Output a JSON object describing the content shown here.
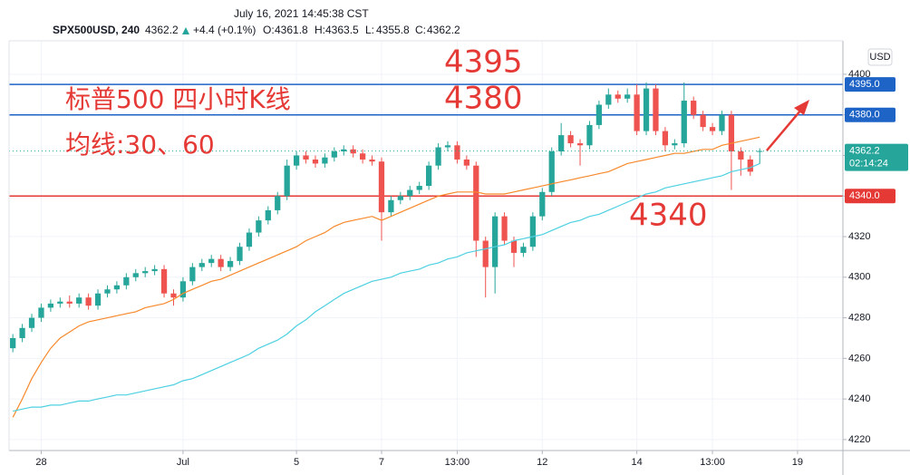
{
  "chart_data": {
    "type": "candlestick",
    "title": "July 16, 2021 14:45:38 CST",
    "symbol": "SPX500USD, 240",
    "change": "+4.4 (+0.1%)",
    "ohlc_labels": [
      "O:",
      "H:",
      "L:",
      "C:"
    ],
    "currency": "USD",
    "countdown": "02:14:24",
    "up_color": "#26a69a",
    "down_color": "#ef5350",
    "open": [
      4265,
      4270,
      4275,
      4280,
      4285,
      4287,
      4288,
      4287,
      4290,
      4286,
      4292,
      4294,
      4296,
      4300,
      4302,
      4303,
      4304,
      4292,
      4290,
      4298,
      4305,
      4307,
      4309,
      4305,
      4308,
      4315,
      4322,
      4328,
      4333,
      4340,
      4355,
      4360,
      4358,
      4356,
      4359,
      4362,
      4363,
      4361,
      4358,
      4357,
      4332,
      4338,
      4340,
      4343,
      4345,
      4355,
      4364,
      4365,
      4358,
      4355,
      4318,
      4305,
      4330,
      4318,
      4312,
      4315,
      4330,
      4342,
      4362,
      4370,
      4366,
      4365,
      4375,
      4385,
      4390,
      4388,
      4390,
      4372,
      4393,
      4372,
      4365,
      4366,
      4387,
      4380,
      4374,
      4372,
      4380,
      4362,
      4358,
      4361.8
    ],
    "high": [
      4272,
      4277,
      4282,
      4287,
      4289,
      4290,
      4291,
      4292,
      4292,
      4294,
      4296,
      4298,
      4302,
      4304,
      4305,
      4306,
      4306,
      4294,
      4300,
      4307,
      4309,
      4311,
      4311,
      4310,
      4317,
      4324,
      4330,
      4335,
      4342,
      4358,
      4362,
      4362,
      4360,
      4361,
      4364,
      4365,
      4365,
      4363,
      4360,
      4359,
      4340,
      4342,
      4345,
      4347,
      4357,
      4366,
      4367,
      4367,
      4360,
      4357,
      4320,
      4332,
      4332,
      4320,
      4317,
      4332,
      4344,
      4364,
      4376,
      4372,
      4368,
      4377,
      4387,
      4393,
      4392,
      4393,
      4395,
      4396,
      4395,
      4374,
      4368,
      4396,
      4389,
      4382,
      4376,
      4382,
      4382,
      4364,
      4360,
      4363.5
    ],
    "low": [
      4263,
      4268,
      4273,
      4278,
      4283,
      4285,
      4285,
      4285,
      4284,
      4284,
      4290,
      4292,
      4294,
      4298,
      4300,
      4301,
      4290,
      4286,
      4288,
      4296,
      4303,
      4305,
      4303,
      4303,
      4306,
      4313,
      4320,
      4326,
      4331,
      4338,
      4353,
      4356,
      4354,
      4354,
      4357,
      4360,
      4359,
      4356,
      4355,
      4318,
      4330,
      4336,
      4338,
      4341,
      4343,
      4353,
      4362,
      4356,
      4353,
      4310,
      4290,
      4292,
      4316,
      4305,
      4310,
      4313,
      4328,
      4340,
      4360,
      4364,
      4355,
      4363,
      4373,
      4383,
      4386,
      4386,
      4370,
      4370,
      4370,
      4362,
      4363,
      4364,
      4378,
      4372,
      4370,
      4370,
      4343,
      4350,
      4350,
      4355.8
    ],
    "close": [
      4270,
      4275,
      4280,
      4285,
      4287,
      4288,
      4287,
      4290,
      4286,
      4292,
      4294,
      4296,
      4300,
      4302,
      4303,
      4304,
      4292,
      4290,
      4298,
      4305,
      4307,
      4309,
      4305,
      4308,
      4315,
      4322,
      4328,
      4333,
      4340,
      4355,
      4360,
      4358,
      4356,
      4359,
      4362,
      4363,
      4361,
      4358,
      4357,
      4332,
      4338,
      4340,
      4343,
      4345,
      4355,
      4364,
      4365,
      4358,
      4355,
      4318,
      4305,
      4330,
      4318,
      4312,
      4315,
      4330,
      4342,
      4362,
      4370,
      4366,
      4365,
      4375,
      4385,
      4390,
      4388,
      4390,
      4372,
      4393,
      4372,
      4365,
      4366,
      4387,
      4380,
      4374,
      4372,
      4380,
      4362,
      4358,
      4352,
      4362.2
    ],
    "ma_lines": [
      {
        "color": "#f7892b",
        "values": [
          4231,
          4240,
          4250,
          4258,
          4265,
          4270,
          4273,
          4276,
          4278,
          4279,
          4280,
          4281,
          4282,
          4283,
          4285,
          4286,
          4287,
          4289,
          4292,
          4294,
          4296,
          4298,
          4299,
          4301,
          4303,
          4305,
          4307,
          4309,
          4311,
          4313,
          4315,
          4318,
          4320,
          4322,
          4325,
          4327,
          4328,
          4329,
          4330,
          4328,
          4330,
          4332,
          4334,
          4336,
          4338,
          4340,
          4341,
          4342,
          4342,
          4342,
          4341,
          4341,
          4341,
          4342,
          4343,
          4344,
          4345,
          4346,
          4347,
          4348,
          4349,
          4350,
          4351,
          4352,
          4354,
          4356,
          4357,
          4358,
          4359,
          4360,
          4361,
          4361,
          4362,
          4363,
          4363,
          4365,
          4366,
          4367,
          4368,
          4369
        ]
      },
      {
        "color": "#4dd0e1",
        "values": [
          4234,
          4235,
          4236,
          4236,
          4237,
          4237,
          4238,
          4239,
          4239,
          4240,
          4241,
          4242,
          4242,
          4243,
          4244,
          4245,
          4246,
          4247,
          4249,
          4250,
          4252,
          4254,
          4256,
          4258,
          4260,
          4262,
          4265,
          4267,
          4269,
          4272,
          4276,
          4279,
          4283,
          4286,
          4289,
          4292,
          4294,
          4296,
          4298,
          4299,
          4300,
          4302,
          4303,
          4304,
          4306,
          4307,
          4309,
          4310,
          4312,
          4313,
          4314,
          4315,
          4316,
          4318,
          4319,
          4320,
          4321,
          4323,
          4325,
          4327,
          4328,
          4330,
          4331,
          4333,
          4335,
          4337,
          4339,
          4341,
          4342,
          4344,
          4345,
          4346,
          4347,
          4348,
          4349,
          4350,
          4352,
          4353,
          4354,
          4356
        ]
      }
    ],
    "xlim": [
      -0.4,
      87.8
    ],
    "xticks": [
      {
        "value": 3,
        "label": "28"
      },
      {
        "value": 18,
        "label": "Jul"
      },
      {
        "value": 30,
        "label": "5"
      },
      {
        "value": 39,
        "label": "7"
      },
      {
        "value": 47,
        "label": "13:00"
      },
      {
        "value": 56,
        "label": "12"
      },
      {
        "value": 66,
        "label": "14"
      },
      {
        "value": 74,
        "label": "13:00"
      },
      {
        "value": 83,
        "label": "19"
      }
    ],
    "ylim": [
      4214.6,
      4416.5
    ],
    "yticks": [
      4220,
      4240,
      4260,
      4280,
      4300,
      4320,
      4340,
      4360,
      4380,
      4400
    ],
    "grid": true,
    "hlines": [
      {
        "value": 4395,
        "label": "4395.0",
        "color": "#1e63c6"
      },
      {
        "value": 4380,
        "label": "4380.0",
        "color": "#1e63c6"
      },
      {
        "value": 4340,
        "label": "4340.0",
        "color": "#e53935"
      }
    ],
    "annotations": [
      "4395",
      "4380",
      "4340",
      "标普500 四小时K线",
      "均线:30、60"
    ]
  }
}
